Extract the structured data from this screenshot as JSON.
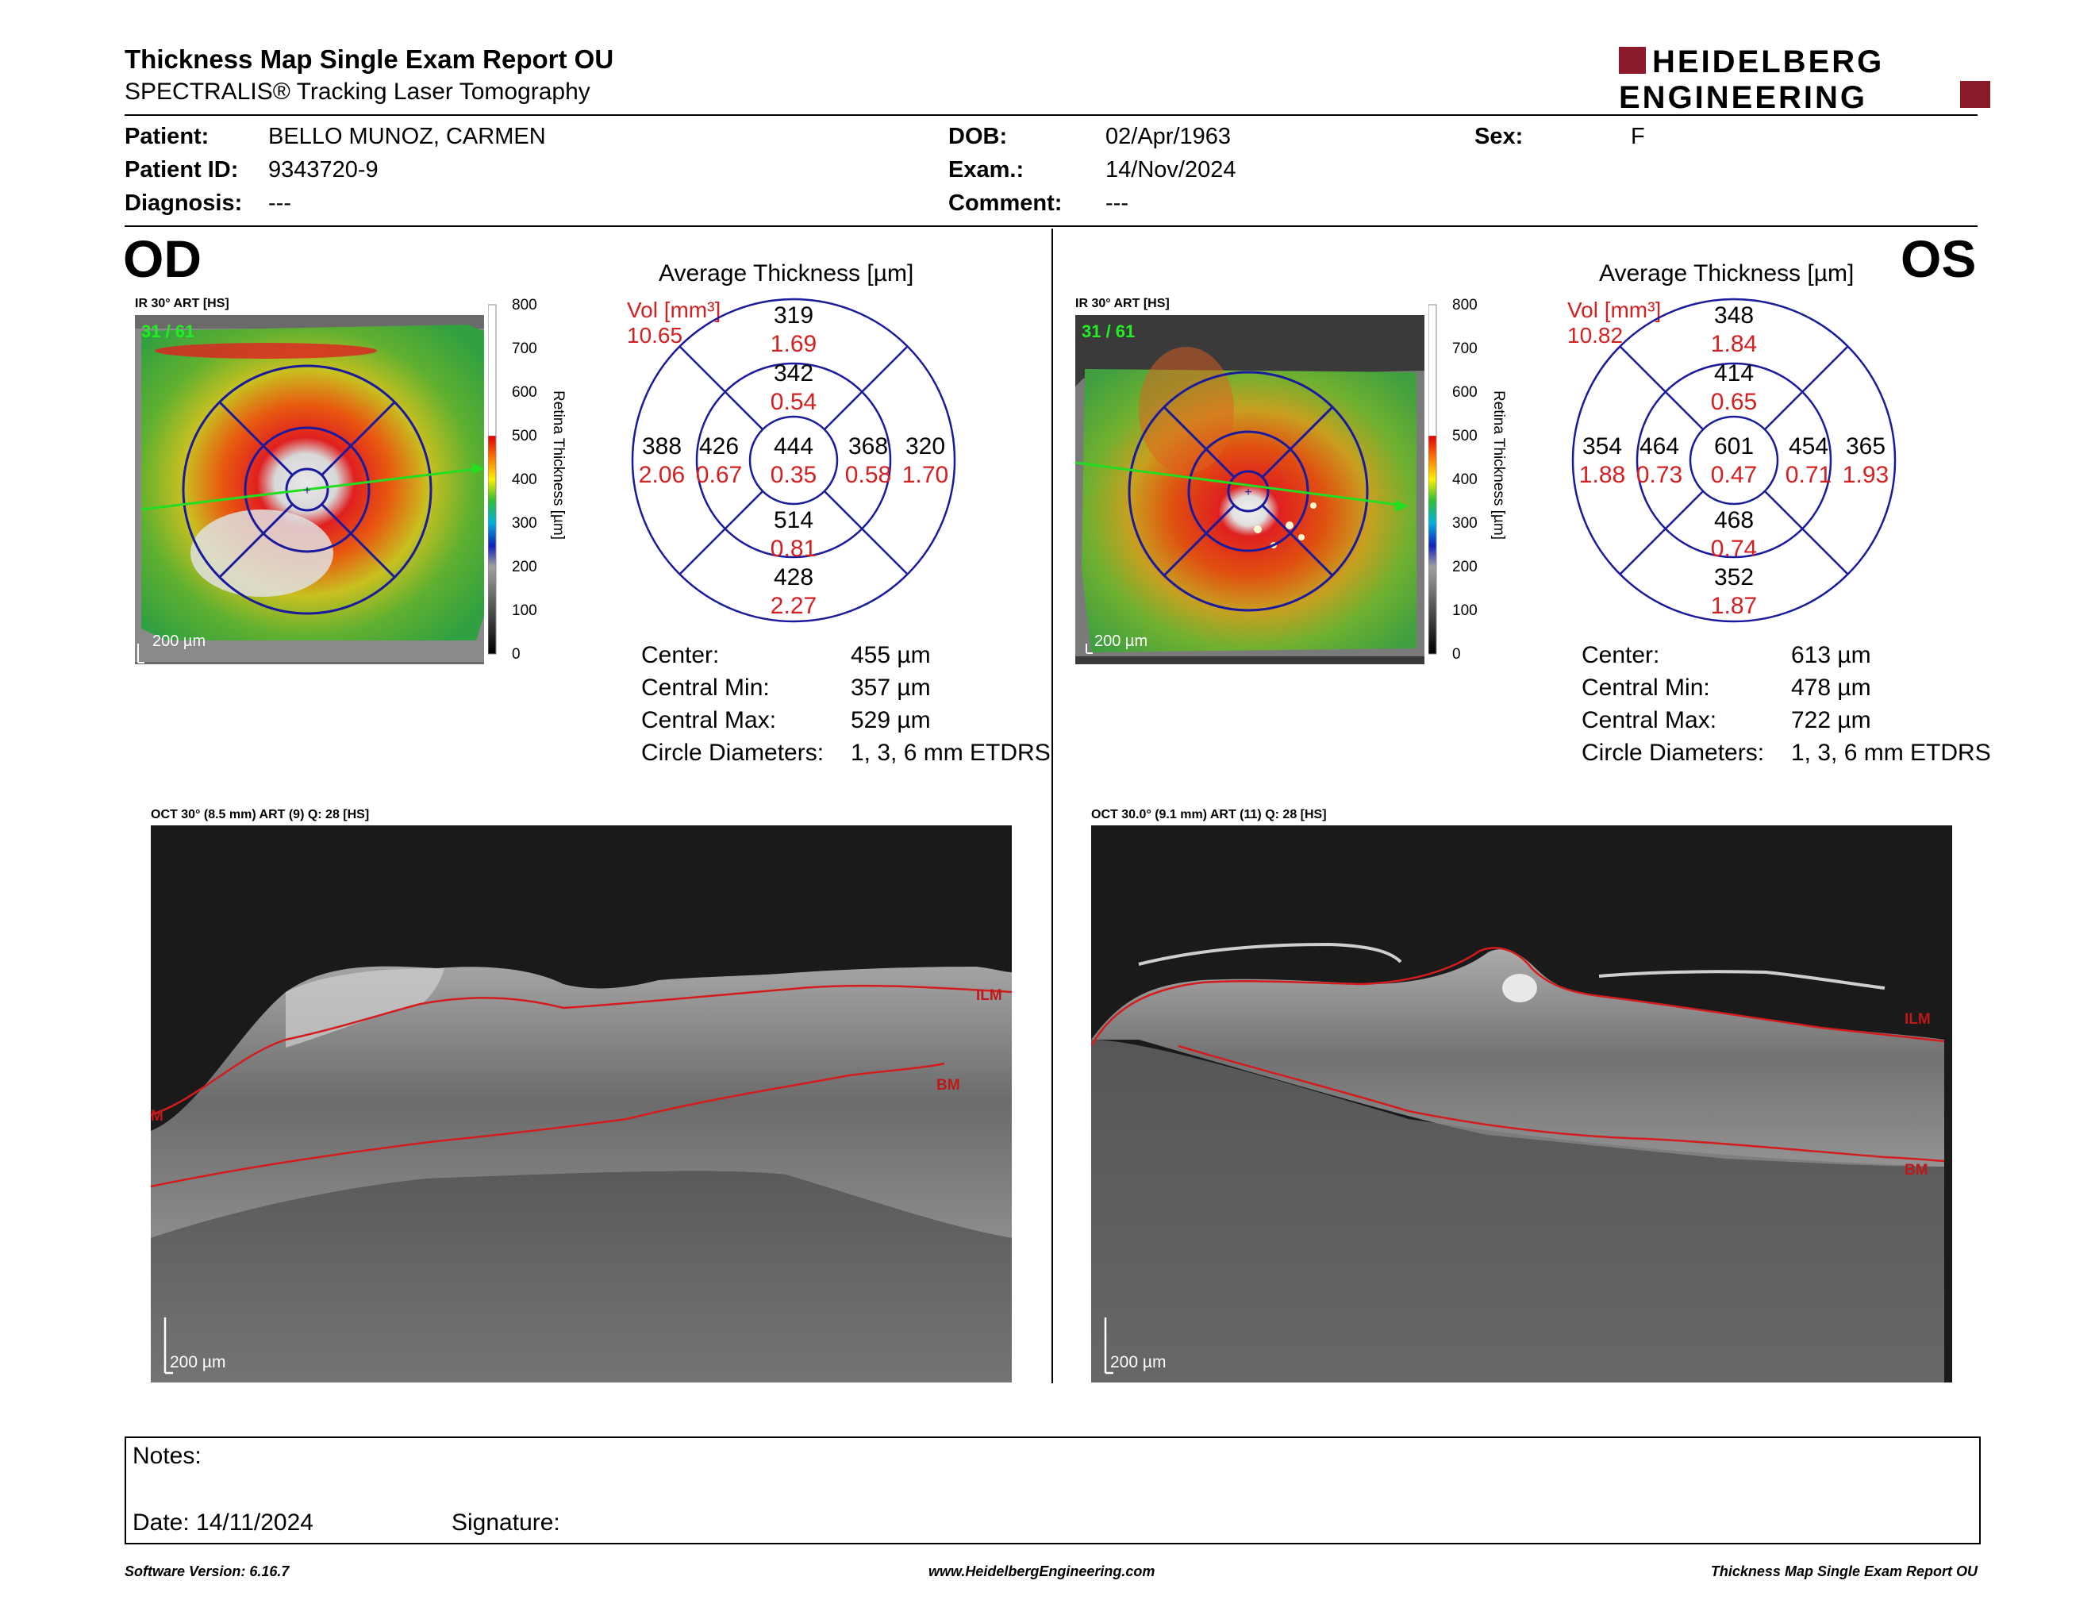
{
  "header": {
    "title": "Thickness Map Single Exam Report OU",
    "subtitle": "SPECTRALIS® Tracking Laser Tomography",
    "logo_line1": "HEIDELBERG",
    "logo_line2": "ENGINEERING",
    "brand_color": "#8b1a2b"
  },
  "patient": {
    "patient_label": "Patient:",
    "patient_value": "BELLO MUNOZ, CARMEN",
    "id_label": "Patient ID:",
    "id_value": "9343720-9",
    "diagnosis_label": "Diagnosis:",
    "diagnosis_value": "---",
    "dob_label": "DOB:",
    "dob_value": "02/Apr/1963",
    "exam_label": "Exam.:",
    "exam_value": "14/Nov/2024",
    "comment_label": "Comment:",
    "comment_value": "---",
    "sex_label": "Sex:",
    "sex_value": "F"
  },
  "scale": {
    "ticks": [
      "800",
      "700",
      "600",
      "500",
      "400",
      "300",
      "200",
      "100",
      "0"
    ],
    "axis_label": "Retina Thickness [µm]"
  },
  "od": {
    "eye_label": "OD",
    "ir_caption": "IR 30° ART [HS]",
    "frame_counter": "31 / 61",
    "scalebar": "200 µm",
    "avg_title": "Average Thickness [µm]",
    "vol_label": "Vol [mm³]",
    "vol_value": "10.65",
    "etdrs": {
      "center": {
        "thickness": "444",
        "volume": "0.35"
      },
      "inner_superior": {
        "thickness": "342",
        "volume": "0.54"
      },
      "inner_temporal": {
        "thickness": "426",
        "volume": "0.67"
      },
      "inner_nasal": {
        "thickness": "368",
        "volume": "0.58"
      },
      "inner_inferior": {
        "thickness": "514",
        "volume": "0.81"
      },
      "outer_superior": {
        "thickness": "319",
        "volume": "1.69"
      },
      "outer_temporal": {
        "thickness": "388",
        "volume": "2.06"
      },
      "outer_nasal": {
        "thickness": "320",
        "volume": "1.70"
      },
      "outer_inferior": {
        "thickness": "428",
        "volume": "2.27"
      }
    },
    "stats": {
      "center_label": "Center:",
      "center_value": "455 µm",
      "min_label": "Central Min:",
      "min_value": "357 µm",
      "max_label": "Central Max:",
      "max_value": "529 µm",
      "diam_label": "Circle Diameters:",
      "diam_value": "1, 3, 6 mm ETDRS"
    },
    "oct_caption": "OCT 30° (8.5 mm) ART (9) Q: 28 [HS]",
    "oct_scalebar": "200 µm",
    "ilm_label": "ILM",
    "bm_label": "BM",
    "edge_label": "M"
  },
  "os": {
    "eye_label": "OS",
    "ir_caption": "IR 30° ART [HS]",
    "frame_counter": "31 / 61",
    "scalebar": "200 µm",
    "avg_title": "Average Thickness [µm]",
    "vol_label": "Vol [mm³]",
    "vol_value": "10.82",
    "etdrs": {
      "center": {
        "thickness": "601",
        "volume": "0.47"
      },
      "inner_superior": {
        "thickness": "414",
        "volume": "0.65"
      },
      "inner_temporal": {
        "thickness": "464",
        "volume": "0.73"
      },
      "inner_nasal": {
        "thickness": "454",
        "volume": "0.71"
      },
      "inner_inferior": {
        "thickness": "468",
        "volume": "0.74"
      },
      "outer_superior": {
        "thickness": "348",
        "volume": "1.84"
      },
      "outer_temporal": {
        "thickness": "354",
        "volume": "1.88"
      },
      "outer_nasal": {
        "thickness": "365",
        "volume": "1.93"
      },
      "outer_inferior": {
        "thickness": "352",
        "volume": "1.87"
      }
    },
    "stats": {
      "center_label": "Center:",
      "center_value": "613 µm",
      "min_label": "Central Min:",
      "min_value": "478 µm",
      "max_label": "Central Max:",
      "max_value": "722 µm",
      "diam_label": "Circle Diameters:",
      "diam_value": "1, 3, 6 mm ETDRS"
    },
    "oct_caption": "OCT 30.0° (9.1 mm) ART (11) Q: 28 [HS]",
    "oct_scalebar": "200 µm",
    "ilm_label": "ILM",
    "bm_label": "BM"
  },
  "notes": {
    "notes_label": "Notes:",
    "date_label": "Date: 14/11/2024",
    "signature_label": "Signature:"
  },
  "footer": {
    "software": "Software Version: 6.16.7",
    "website": "www.HeidelbergEngineering.com",
    "report_name": "Thickness Map Single Exam Report OU"
  },
  "colors": {
    "etdrs_ring": "#1a1a9c",
    "volume_text": "#d42020",
    "scan_line": "#22dd22",
    "segmentation_line": "#d41c1c"
  }
}
